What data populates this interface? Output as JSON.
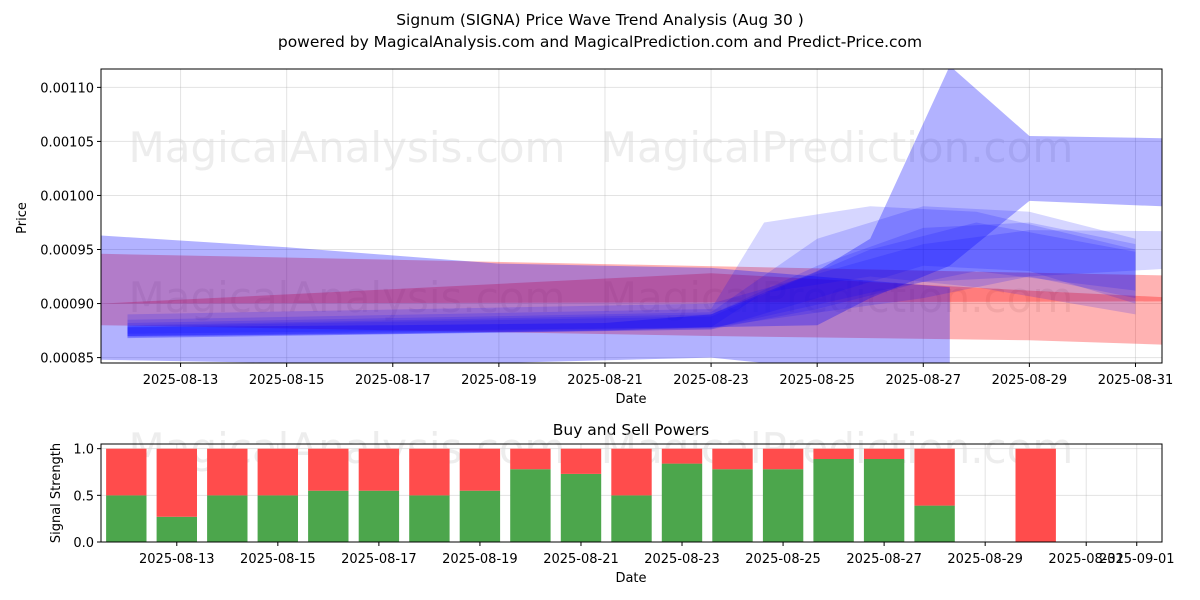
{
  "title": "Signum (SIGNA) Price Wave Trend Analysis (Aug 30 )",
  "subtitle": "powered by MagicalAnalysis.com and MagicalPrediction.com and Predict-Price.com",
  "watermarks": [
    "MagicalAnalysis.com",
    "MagicalPrediction.com"
  ],
  "chart_data": [
    {
      "type": "area",
      "xlabel": "Date",
      "ylabel": "Price",
      "xlim": [
        "2025-08-11T12:00",
        "2025-08-31T12:00"
      ],
      "ylim": [
        0.000845,
        0.001117
      ],
      "grid": true,
      "x_ticks": [
        "2025-08-13",
        "2025-08-15",
        "2025-08-17",
        "2025-08-19",
        "2025-08-21",
        "2025-08-23",
        "2025-08-25",
        "2025-08-27",
        "2025-08-29",
        "2025-08-31"
      ],
      "y_ticks": [
        "0.00085",
        "0.00090",
        "0.00095",
        "0.00100",
        "0.00105",
        "0.00110"
      ],
      "colors": {
        "red_band": "#ff0000",
        "blue_band": "#0000ff"
      },
      "red_bands": [
        {
          "x": [
            "2025-08-11T12:00",
            "2025-08-31T12:00"
          ],
          "upper": [
            0.000946,
            0.000926
          ],
          "lower": [
            0.0009,
            0.000902
          ]
        },
        {
          "x": [
            "2025-08-11T12:00",
            "2025-08-23",
            "2025-08-29",
            "2025-08-31T12:00"
          ],
          "upper": [
            0.0009,
            0.000928,
            0.000912,
            0.000906
          ],
          "lower": [
            0.00088,
            0.00087,
            0.000866,
            0.000862
          ]
        }
      ],
      "blue_bands": [
        {
          "x": [
            "2025-08-11T12:00",
            "2025-08-15",
            "2025-08-19",
            "2025-08-23",
            "2025-08-25",
            "2025-08-27T12:00"
          ],
          "upper": [
            0.000963,
            0.000952,
            0.000937,
            0.000933,
            0.000925,
            0.000915
          ],
          "lower": [
            0.000848,
            0.000845,
            0.000845,
            0.00085,
            0.00084,
            0.000842
          ]
        },
        {
          "x": [
            "2025-08-12",
            "2025-08-17",
            "2025-08-21",
            "2025-08-23",
            "2025-08-25",
            "2025-08-26",
            "2025-08-27T12:00",
            "2025-08-29",
            "2025-08-31T12:00"
          ],
          "upper": [
            0.000878,
            0.00088,
            0.000882,
            0.00089,
            0.00093,
            0.00096,
            0.00112,
            0.001055,
            0.001053
          ],
          "lower": [
            0.00087,
            0.000872,
            0.000875,
            0.000878,
            0.00088,
            0.000905,
            0.000935,
            0.000995,
            0.00099
          ]
        },
        {
          "x": [
            "2025-08-12",
            "2025-08-23",
            "2025-08-27",
            "2025-08-29",
            "2025-08-31T12:00"
          ],
          "upper": [
            0.00089,
            0.0009,
            0.000955,
            0.000968,
            0.000967
          ],
          "lower": [
            0.000872,
            0.000878,
            0.000905,
            0.000925,
            0.000932
          ]
        },
        {
          "x": [
            "2025-08-12",
            "2025-08-23",
            "2025-08-24",
            "2025-08-26",
            "2025-08-28",
            "2025-08-31"
          ],
          "upper": [
            0.000885,
            0.000895,
            0.000975,
            0.00099,
            0.000985,
            0.00095
          ],
          "lower": [
            0.00087,
            0.000878,
            0.00091,
            0.000925,
            0.000915,
            0.00089
          ]
        },
        {
          "x": [
            "2025-08-12",
            "2025-08-23",
            "2025-08-25",
            "2025-08-27",
            "2025-08-29",
            "2025-08-31"
          ],
          "upper": [
            0.000882,
            0.000892,
            0.00096,
            0.00099,
            0.000985,
            0.00096
          ],
          "lower": [
            0.000868,
            0.000876,
            0.000905,
            0.000935,
            0.00093,
            0.0009
          ]
        },
        {
          "x": [
            "2025-08-12",
            "2025-08-23",
            "2025-08-25",
            "2025-08-27",
            "2025-08-29",
            "2025-08-31"
          ],
          "upper": [
            0.00088,
            0.00089,
            0.000935,
            0.00097,
            0.000975,
            0.000955
          ],
          "lower": [
            0.000868,
            0.000876,
            0.000895,
            0.00092,
            0.000925,
            0.000905
          ]
        },
        {
          "x": [
            "2025-08-12",
            "2025-08-23",
            "2025-08-26",
            "2025-08-28",
            "2025-08-31"
          ],
          "upper": [
            0.000879,
            0.000888,
            0.00095,
            0.000975,
            0.000948
          ],
          "lower": [
            0.000869,
            0.000877,
            0.00091,
            0.00093,
            0.000912
          ]
        }
      ]
    },
    {
      "type": "bar",
      "title": "Buy and Sell Powers",
      "xlabel": "Date",
      "ylabel": "Signal Strength",
      "xlim": [
        "2025-08-11T12:00",
        "2025-09-01T12:00"
      ],
      "ylim": [
        0,
        1.05
      ],
      "grid": true,
      "x_ticks": [
        "2025-08-13",
        "2025-08-15",
        "2025-08-17",
        "2025-08-19",
        "2025-08-21",
        "2025-08-23",
        "2025-08-25",
        "2025-08-27",
        "2025-08-29",
        "2025-08-31",
        "2025-09-01"
      ],
      "y_ticks": [
        "0.0",
        "0.5",
        "1.0"
      ],
      "colors": {
        "buy": "#4ca64c",
        "sell": "#ff4c4c"
      },
      "dates": [
        "2025-08-12",
        "2025-08-13",
        "2025-08-14",
        "2025-08-15",
        "2025-08-16",
        "2025-08-17",
        "2025-08-18",
        "2025-08-19",
        "2025-08-20",
        "2025-08-21",
        "2025-08-22",
        "2025-08-23",
        "2025-08-24",
        "2025-08-25",
        "2025-08-26",
        "2025-08-27",
        "2025-08-28",
        "2025-08-30"
      ],
      "buy": [
        0.5,
        0.27,
        0.5,
        0.5,
        0.55,
        0.55,
        0.5,
        0.55,
        0.78,
        0.73,
        0.5,
        0.84,
        0.78,
        0.78,
        0.89,
        0.89,
        0.39,
        0.0
      ],
      "sell": [
        0.5,
        0.73,
        0.5,
        0.5,
        0.45,
        0.45,
        0.5,
        0.45,
        0.22,
        0.27,
        0.5,
        0.16,
        0.22,
        0.22,
        0.11,
        0.11,
        0.61,
        1.0
      ]
    }
  ]
}
